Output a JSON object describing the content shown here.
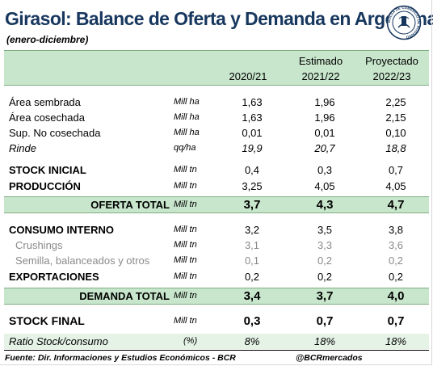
{
  "title": "Girasol: Balance de Oferta y Demanda en Argentina",
  "subtitle": "(enero-diciembre)",
  "seal_text": "BOLSA DE COMERCIO DE ROSARIO",
  "columns": [
    {
      "top": "",
      "bottom": "2020/21"
    },
    {
      "top": "Estimado",
      "bottom": "2021/22"
    },
    {
      "top": "Proyectado",
      "bottom": "2022/23"
    }
  ],
  "rows": [
    {
      "label": "Área sembrada",
      "unit": "Mill ha",
      "values": [
        "1,63",
        "1,96",
        "2,25"
      ]
    },
    {
      "label": "Área cosechada",
      "unit": "Mill ha",
      "values": [
        "1,63",
        "1,96",
        "2,15"
      ]
    },
    {
      "label": "Sup. No cosechada",
      "unit": "Mill ha",
      "values": [
        "0,01",
        "0,01",
        "0,10"
      ]
    },
    {
      "label": "Rinde",
      "unit": "qq/ha",
      "values": [
        "19,9",
        "20,7",
        "18,8"
      ]
    },
    {
      "label": "STOCK INICIAL",
      "unit": "Mill tn",
      "values": [
        "0,4",
        "0,3",
        "0,7"
      ]
    },
    {
      "label": "PRODUCCIÓN",
      "unit": "Mill tn",
      "values": [
        "3,25",
        "4,05",
        "4,05"
      ]
    },
    {
      "label": "OFERTA TOTAL",
      "unit": "Mill tn",
      "values": [
        "3,7",
        "4,3",
        "4,7"
      ]
    },
    {
      "label": "CONSUMO INTERNO",
      "unit": "Mill tn",
      "values": [
        "3,2",
        "3,5",
        "3,8"
      ]
    },
    {
      "label": "Crushings",
      "unit": "Mill tn",
      "values": [
        "3,1",
        "3,3",
        "3,6"
      ]
    },
    {
      "label": "Semilla, balanceados y otros",
      "unit": "Mill tn",
      "values": [
        "0,1",
        "0,2",
        "0,2"
      ]
    },
    {
      "label": "EXPORTACIONES",
      "unit": "Mill tn",
      "values": [
        "0,2",
        "0,2",
        "0,2"
      ]
    },
    {
      "label": "DEMANDA TOTAL",
      "unit": "Mill tn",
      "values": [
        "3,4",
        "3,7",
        "4,0"
      ]
    },
    {
      "label": "STOCK FINAL",
      "unit": "Mill tn",
      "values": [
        "0,3",
        "0,7",
        "0,7"
      ]
    },
    {
      "label": "Ratio Stock/consumo",
      "unit": "(%)",
      "values": [
        "8%",
        "18%",
        "18%"
      ]
    }
  ],
  "footer": {
    "source": "Fuente: Dir. Informaciones y Estudios Económicos - BCR",
    "handle": "@BCRmercados"
  },
  "colors": {
    "title": "#17375e",
    "header_fill": "#c8e6cc",
    "shaded_fill": "#e5f2e6",
    "muted_text": "#8a8a8a"
  }
}
